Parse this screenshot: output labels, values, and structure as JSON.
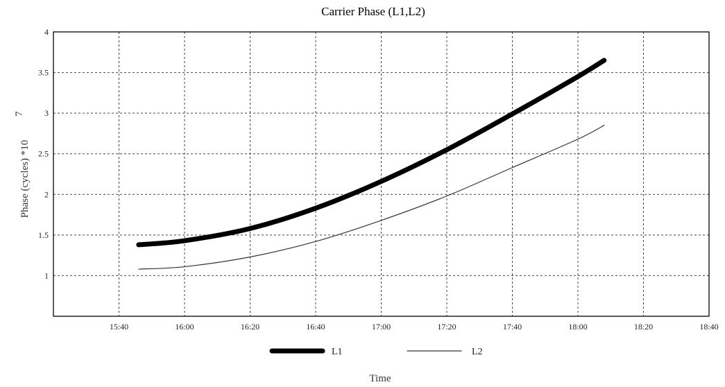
{
  "chart_data": {
    "type": "line",
    "title": "Carrier Phase  (L1,L2)",
    "xlabel": "Time",
    "ylabel": "Phase (cycles) *10",
    "ylabel_exponent": "7",
    "x_ticks": [
      "15:40",
      "16:00",
      "16:20",
      "16:40",
      "17:00",
      "17:20",
      "17:40",
      "18:00",
      "18:20",
      "18:40"
    ],
    "y_ticks": [
      "1",
      "1.5",
      "2",
      "2.5",
      "3",
      "3.5",
      "4"
    ],
    "ylim": [
      0.5,
      4
    ],
    "xlim": [
      "15:20",
      "18:40"
    ],
    "grid": true,
    "legend_position": "bottom-center",
    "series": [
      {
        "name": "L1",
        "line": "thick",
        "color": "#000000",
        "x": [
          "15:46",
          "16:00",
          "16:20",
          "16:40",
          "17:00",
          "17:20",
          "17:40",
          "18:00",
          "18:08"
        ],
        "values": [
          1.38,
          1.43,
          1.58,
          1.83,
          2.16,
          2.55,
          2.99,
          3.45,
          3.65
        ]
      },
      {
        "name": "L2",
        "line": "thin",
        "color": "#333333",
        "x": [
          "15:46",
          "16:00",
          "16:20",
          "16:40",
          "17:00",
          "17:20",
          "17:40",
          "18:00",
          "18:08"
        ],
        "values": [
          1.08,
          1.11,
          1.23,
          1.42,
          1.68,
          1.98,
          2.33,
          2.68,
          2.85
        ]
      }
    ]
  }
}
